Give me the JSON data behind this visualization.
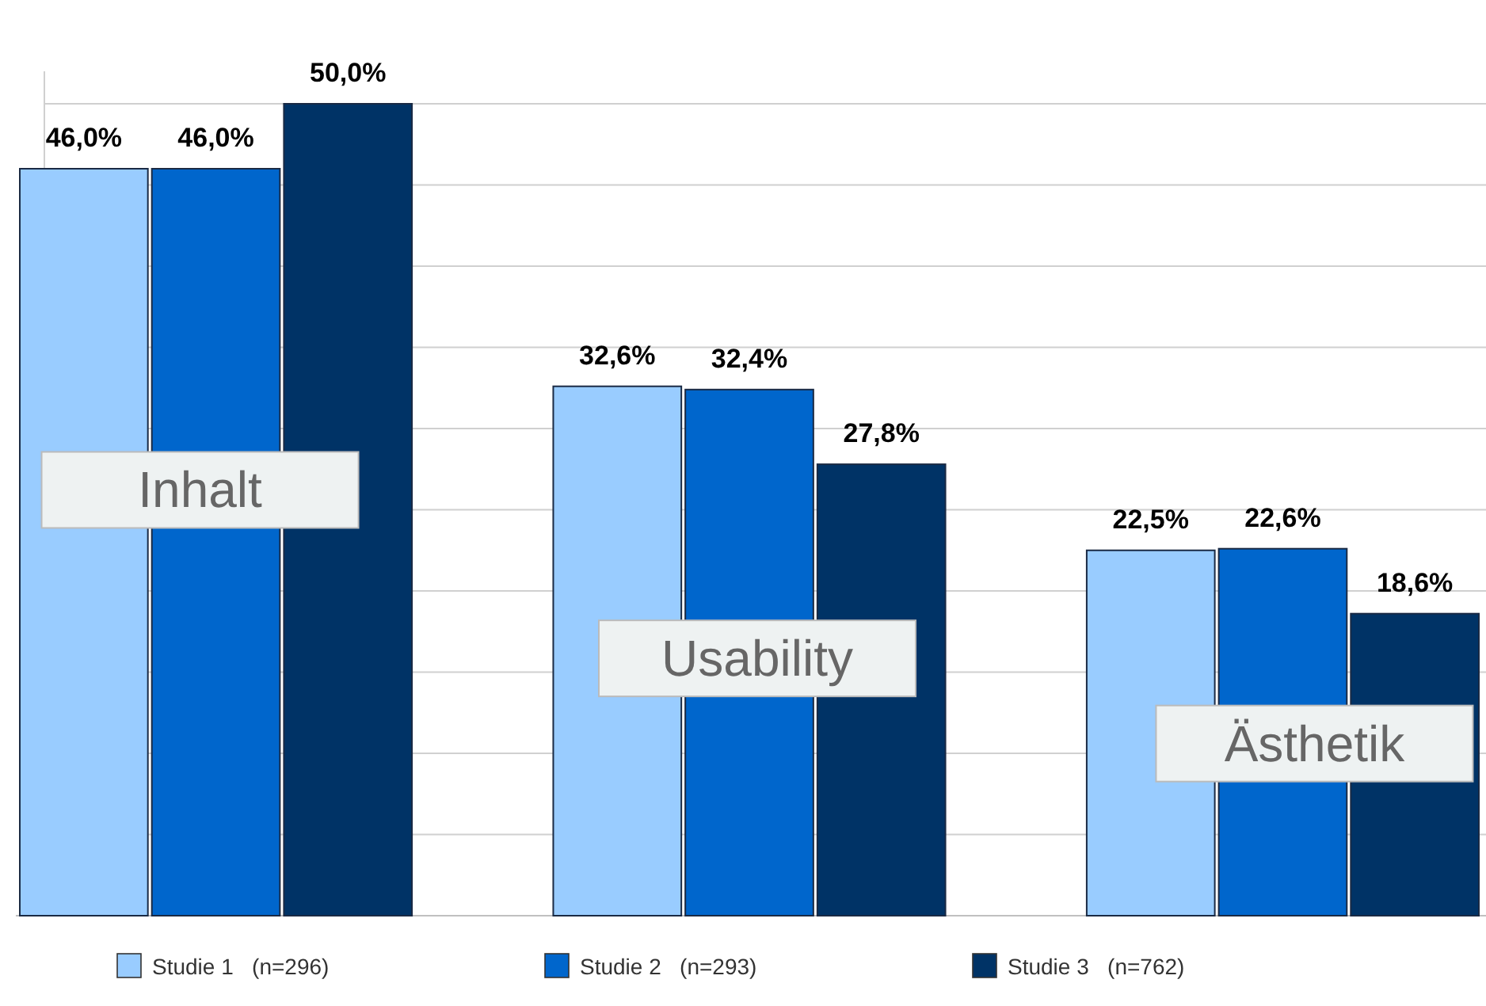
{
  "chart_data": {
    "type": "bar",
    "categories": [
      "Inhalt",
      "Usability",
      "Ästhetik"
    ],
    "series": [
      {
        "name": "Studie 1   (n=296)",
        "color": "#99ccff",
        "values": [
          46.0,
          32.6,
          22.5
        ],
        "value_labels": [
          "46,0%",
          "32,6%",
          "22,5%"
        ]
      },
      {
        "name": "Studie 2   (n=293)",
        "color": "#0066cc",
        "values": [
          46.0,
          32.4,
          22.6
        ],
        "value_labels": [
          "46,0%",
          "32,4%",
          "22,6%"
        ]
      },
      {
        "name": "Studie 3   (n=762)",
        "color": "#003366",
        "values": [
          50.0,
          27.8,
          18.6
        ],
        "value_labels": [
          "50,0%",
          "27,8%",
          "18,6%"
        ]
      }
    ],
    "ylim": [
      0,
      52
    ],
    "yticks": [
      {
        "value": 0,
        "label": null
      },
      {
        "value": 5,
        "label": null
      },
      {
        "value": 10,
        "label": null
      },
      {
        "value": 15,
        "label": null
      },
      {
        "value": 20,
        "label": null
      },
      {
        "value": 25,
        "label": null
      },
      {
        "value": 30,
        "label": null
      },
      {
        "value": 35,
        "label": null
      },
      {
        "value": 40,
        "label": null
      },
      {
        "value": 45,
        "label": null
      },
      {
        "value": 50,
        "label": null
      }
    ],
    "grid": "y",
    "legend": "bottom"
  }
}
